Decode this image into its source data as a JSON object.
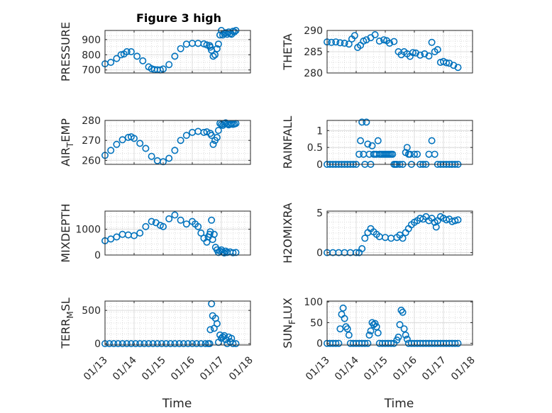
{
  "figure": {
    "title": "Figure 3 high"
  },
  "chart_data": [
    {
      "type": "scatter",
      "ylabel": "PRESSURE",
      "xlabel": "",
      "xlim": [
        0,
        5
      ],
      "ylim": [
        680,
        960
      ],
      "yticks": [
        700,
        800,
        900
      ],
      "xticks": [],
      "series": [
        {
          "x": [
            0,
            0.2,
            0.4,
            0.55,
            0.65,
            0.75,
            0.9,
            1.1,
            1.3,
            1.5,
            1.6,
            1.7,
            1.8,
            1.9,
            2.0,
            2.2,
            2.4,
            2.6,
            2.8,
            3.0,
            3.2,
            3.4,
            3.5,
            3.6,
            3.62,
            3.66,
            3.72,
            3.78,
            3.85,
            3.9,
            3.95,
            4.0,
            4.05,
            4.1,
            4.15,
            4.2,
            4.25,
            4.3,
            4.35,
            4.4,
            4.45,
            4.5
          ],
          "y": [
            740,
            750,
            775,
            800,
            805,
            820,
            820,
            790,
            760,
            720,
            708,
            702,
            701,
            700,
            706,
            735,
            790,
            840,
            870,
            875,
            875,
            872,
            865,
            860,
            850,
            830,
            790,
            800,
            840,
            870,
            930,
            960,
            930,
            940,
            945,
            935,
            950,
            940,
            935,
            955,
            950,
            960
          ]
        }
      ]
    },
    {
      "type": "scatter",
      "ylabel": "THETA",
      "xlabel": "",
      "xlim": [
        0,
        5
      ],
      "ylim": [
        280,
        290
      ],
      "yticks": [
        280,
        285,
        290
      ],
      "xticks": [],
      "series": [
        {
          "x": [
            0,
            0.15,
            0.3,
            0.45,
            0.6,
            0.75,
            0.85,
            0.95,
            1.05,
            1.15,
            1.25,
            1.35,
            1.5,
            1.65,
            1.8,
            1.95,
            2.05,
            2.15,
            2.3,
            2.45,
            2.55,
            2.65,
            2.75,
            2.85,
            2.95,
            3.05,
            3.2,
            3.35,
            3.5,
            3.6,
            3.7,
            3.8,
            3.9,
            4.0,
            4.1,
            4.2,
            4.35,
            4.5
          ],
          "y": [
            287.3,
            287.2,
            287.3,
            287.1,
            287,
            286.8,
            288,
            288.8,
            286,
            286.5,
            287.5,
            287.8,
            288.3,
            289,
            287.5,
            287.8,
            287.6,
            287,
            287.4,
            285,
            284.3,
            285,
            284.5,
            283.9,
            284.8,
            284.7,
            284.2,
            284.5,
            284,
            287.2,
            285,
            285.5,
            282.5,
            282.7,
            282.4,
            282.3,
            281.8,
            281.3
          ]
        }
      ]
    },
    {
      "type": "scatter",
      "ylabel": "AIR_TEMP",
      "xlabel": "",
      "xlim": [
        0,
        5
      ],
      "ylim": [
        258,
        280
      ],
      "yticks": [
        260,
        270,
        280
      ],
      "xticks": [],
      "series": [
        {
          "x": [
            0,
            0.2,
            0.4,
            0.6,
            0.8,
            0.9,
            1.0,
            1.2,
            1.4,
            1.6,
            1.8,
            2.0,
            2.2,
            2.4,
            2.6,
            2.8,
            3.0,
            3.2,
            3.4,
            3.5,
            3.62,
            3.66,
            3.72,
            3.78,
            3.85,
            3.9,
            3.95,
            4.0,
            4.05,
            4.1,
            4.15,
            4.2,
            4.25,
            4.3,
            4.35,
            4.4,
            4.45,
            4.5
          ],
          "y": [
            262.5,
            265,
            268,
            270.3,
            271.5,
            271.8,
            271,
            268.5,
            266,
            262,
            259.8,
            259.3,
            261,
            265,
            270,
            272.5,
            274,
            274.5,
            274,
            274.3,
            273.5,
            272.5,
            268,
            270,
            271.5,
            275,
            278.5,
            278,
            277.5,
            278.3,
            278.8,
            278.2,
            277.8,
            278,
            278.4,
            278,
            278.2,
            278.5
          ]
        }
      ]
    },
    {
      "type": "scatter",
      "ylabel": "RAINFALL",
      "xlabel": "",
      "xlim": [
        0,
        5
      ],
      "ylim": [
        0,
        1.3
      ],
      "yticks": [
        0,
        0.5,
        1
      ],
      "ytick_labels": [
        "0",
        "0.5",
        "1"
      ],
      "xticks": [],
      "series": [
        {
          "x": [
            0,
            0.1,
            0.2,
            0.3,
            0.4,
            0.5,
            0.6,
            0.7,
            0.8,
            0.9,
            1.0,
            1.1,
            1.15,
            1.2,
            1.25,
            1.3,
            1.35,
            1.4,
            1.45,
            1.5,
            1.55,
            1.6,
            1.65,
            1.7,
            1.75,
            1.8,
            1.85,
            1.9,
            1.95,
            2.0,
            2.05,
            2.1,
            2.15,
            2.2,
            2.25,
            2.3,
            2.35,
            2.4,
            2.5,
            2.6,
            2.7,
            2.75,
            2.8,
            2.85,
            2.9,
            3.0,
            3.1,
            3.2,
            3.3,
            3.4,
            3.5,
            3.6,
            3.7,
            3.8,
            3.9,
            4.0,
            4.1,
            4.2,
            4.3,
            4.4,
            4.5
          ],
          "y": [
            0,
            0,
            0,
            0,
            0,
            0,
            0,
            0,
            0,
            0,
            0,
            0.3,
            0.7,
            1.25,
            0.3,
            0,
            1.25,
            0.6,
            0.3,
            0,
            0.55,
            0.3,
            0.3,
            0.3,
            0.7,
            0.3,
            0.3,
            0.3,
            0.3,
            0.3,
            0.3,
            0.3,
            0.3,
            0.3,
            0.3,
            0,
            0,
            0,
            0,
            0,
            0.35,
            0.5,
            0.3,
            0.3,
            0,
            0.3,
            0.3,
            0,
            0,
            0,
            0.3,
            0.7,
            0.3,
            0,
            0,
            0,
            0,
            0,
            0,
            0,
            0
          ]
        }
      ]
    },
    {
      "type": "scatter",
      "ylabel": "MIXDEPTH",
      "xlabel": "",
      "xlim": [
        0,
        5
      ],
      "ylim": [
        0,
        1700
      ],
      "yticks": [
        0,
        1000
      ],
      "xticks": [],
      "series": [
        {
          "x": [
            0,
            0.2,
            0.4,
            0.6,
            0.8,
            1.0,
            1.2,
            1.4,
            1.6,
            1.75,
            1.9,
            2.0,
            2.2,
            2.4,
            2.6,
            2.8,
            3.0,
            3.1,
            3.2,
            3.3,
            3.4,
            3.5,
            3.55,
            3.6,
            3.62,
            3.66,
            3.7,
            3.75,
            3.8,
            3.85,
            3.9,
            3.95,
            4.0,
            4.05,
            4.1,
            4.15,
            4.2,
            4.3,
            4.4,
            4.5
          ],
          "y": [
            550,
            620,
            700,
            800,
            780,
            750,
            850,
            1100,
            1300,
            1250,
            1150,
            1100,
            1400,
            1550,
            1350,
            1200,
            1300,
            1200,
            1100,
            850,
            650,
            500,
            700,
            800,
            900,
            1350,
            600,
            800,
            300,
            200,
            100,
            150,
            200,
            120,
            80,
            150,
            100,
            120,
            90,
            100
          ]
        }
      ]
    },
    {
      "type": "scatter",
      "ylabel": "H2OMIXRA",
      "xlabel": "",
      "xlim": [
        0,
        5
      ],
      "ylim": [
        -0.3,
        5.2
      ],
      "yticks": [
        0,
        5
      ],
      "xticks": [],
      "series": [
        {
          "x": [
            0,
            0.2,
            0.4,
            0.6,
            0.8,
            1.0,
            1.1,
            1.2,
            1.3,
            1.4,
            1.5,
            1.6,
            1.7,
            1.8,
            2.0,
            2.2,
            2.4,
            2.5,
            2.6,
            2.7,
            2.8,
            2.9,
            3.0,
            3.1,
            3.2,
            3.3,
            3.4,
            3.5,
            3.6,
            3.7,
            3.75,
            3.8,
            3.9,
            4.0,
            4.1,
            4.2,
            4.3,
            4.4,
            4.5
          ],
          "y": [
            0,
            0,
            0,
            0,
            0,
            0,
            0,
            0.5,
            1.8,
            2.5,
            3,
            2.6,
            2.3,
            2,
            1.9,
            1.8,
            1.9,
            2.2,
            1.8,
            2.5,
            3,
            3.5,
            3.8,
            4,
            4.3,
            4.2,
            4.5,
            4,
            4.3,
            3.8,
            3.2,
            4,
            4.5,
            4.3,
            4.1,
            4.2,
            3.9,
            4,
            4.1
          ]
        }
      ]
    },
    {
      "type": "scatter",
      "ylabel": "TERR_MSL",
      "xlabel": "Time",
      "xlim": [
        0,
        5
      ],
      "ylim": [
        -20,
        640
      ],
      "yticks": [
        0,
        500
      ],
      "xticks": [
        0,
        1,
        2,
        3,
        4,
        5
      ],
      "xtick_labels": [
        "01/13",
        "01/14",
        "01/15",
        "01/16",
        "01/17",
        "01/18"
      ],
      "series": [
        {
          "x": [
            0,
            0.15,
            0.3,
            0.45,
            0.6,
            0.75,
            0.9,
            1.05,
            1.2,
            1.35,
            1.5,
            1.65,
            1.8,
            1.95,
            2.1,
            2.25,
            2.4,
            2.55,
            2.7,
            2.85,
            3.0,
            3.15,
            3.3,
            3.45,
            3.55,
            3.6,
            3.62,
            3.66,
            3.7,
            3.75,
            3.8,
            3.85,
            3.9,
            3.95,
            4.0,
            4.05,
            4.1,
            4.15,
            4.2,
            4.25,
            4.3,
            4.35,
            4.4,
            4.5
          ],
          "y": [
            0,
            0,
            0,
            0,
            0,
            0,
            0,
            0,
            0,
            0,
            0,
            0,
            0,
            0,
            0,
            0,
            0,
            0,
            0,
            0,
            0,
            0,
            0,
            0,
            0,
            0,
            210,
            600,
            420,
            230,
            380,
            300,
            20,
            130,
            80,
            100,
            120,
            60,
            0,
            100,
            30,
            80,
            0,
            0
          ]
        }
      ]
    },
    {
      "type": "scatter",
      "ylabel": "SUN_FLUX",
      "xlabel": "Time",
      "xlim": [
        0,
        5
      ],
      "ylim": [
        -4,
        102
      ],
      "yticks": [
        0,
        50,
        100
      ],
      "xticks": [
        0,
        1,
        2,
        3,
        4,
        5
      ],
      "xtick_labels": [
        "01/13",
        "01/14",
        "01/15",
        "01/16",
        "01/17",
        "01/18"
      ],
      "series": [
        {
          "x": [
            0,
            0.1,
            0.2,
            0.3,
            0.4,
            0.45,
            0.5,
            0.55,
            0.6,
            0.65,
            0.7,
            0.75,
            0.8,
            0.9,
            1.0,
            1.1,
            1.2,
            1.3,
            1.4,
            1.45,
            1.5,
            1.55,
            1.6,
            1.65,
            1.7,
            1.75,
            1.8,
            1.9,
            2.0,
            2.1,
            2.2,
            2.3,
            2.4,
            2.45,
            2.5,
            2.55,
            2.6,
            2.65,
            2.7,
            2.75,
            2.8,
            2.9,
            3.0,
            3.1,
            3.2,
            3.3,
            3.4,
            3.5,
            3.6,
            3.7,
            3.8,
            3.9,
            4.0,
            4.1,
            4.2,
            4.3,
            4.4,
            4.5
          ],
          "y": [
            0,
            0,
            0,
            0,
            0,
            35,
            70,
            85,
            60,
            40,
            35,
            20,
            0,
            0,
            0,
            0,
            0,
            0,
            0,
            20,
            30,
            50,
            45,
            48,
            40,
            25,
            0,
            0,
            0,
            0,
            0,
            0,
            8,
            15,
            45,
            80,
            75,
            35,
            20,
            10,
            0,
            0,
            0,
            0,
            0,
            0,
            0,
            0,
            0,
            0,
            0,
            0,
            0,
            0,
            0,
            0,
            0,
            0
          ]
        }
      ]
    }
  ]
}
